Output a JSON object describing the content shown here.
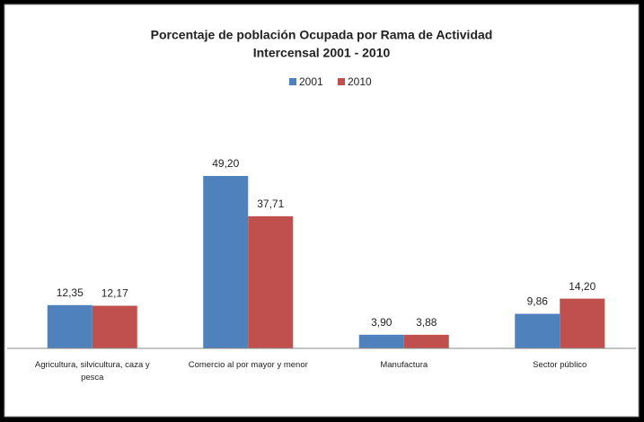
{
  "chart_data": {
    "type": "bar",
    "title": "Porcentaje de población Ocupada por Rama de Actividad",
    "subtitle": "Intercensal 2001 - 2010",
    "categories": [
      "Agricultura, silvicultura, caza y pesca",
      "Comercio al por mayor y menor",
      "Manufactura",
      "Sector público"
    ],
    "series": [
      {
        "name": "2001",
        "color": "#4f81bd",
        "values": [
          12.35,
          49.2,
          3.9,
          9.86
        ],
        "value_labels": [
          "12,35",
          "49,20",
          "3,90",
          "9,86"
        ]
      },
      {
        "name": "2010",
        "color": "#c0504d",
        "values": [
          12.17,
          37.71,
          3.88,
          14.2
        ],
        "value_labels": [
          "12,17",
          "37,71",
          "3,88",
          "14,20"
        ]
      }
    ],
    "legend": "top"
  }
}
